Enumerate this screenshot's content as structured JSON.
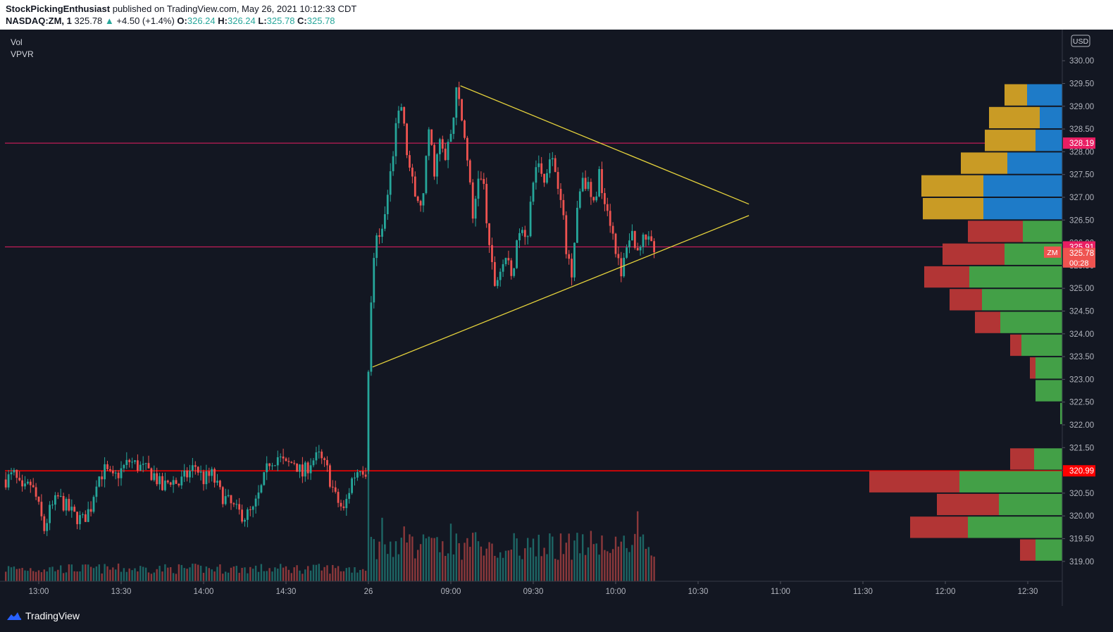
{
  "header": {
    "author": "StockPickingEnthusiast",
    "published": "published on TradingView.com, May 26, 2021 10:12:33 CDT",
    "symbol": "NASDAQ:ZM, 1",
    "last": "325.78",
    "change_arrow": "▲",
    "change": "+4.50 (+1.4%)",
    "o_label": "O:",
    "o": "326.24",
    "h_label": "H:",
    "h": "326.24",
    "l_label": "L:",
    "l": "325.78",
    "c_label": "C:",
    "c": "325.78"
  },
  "indicators": [
    "Vol",
    "VPVR"
  ],
  "footer": {
    "brand": "TradingView",
    "logo_icon": "tradingview-cloud-icon"
  },
  "colors": {
    "background": "#131722",
    "up": "#26a69a",
    "down": "#ef5350",
    "triangle": "#e6d33c",
    "hline_pink": "#e91e63",
    "hline_red": "#ff0000",
    "vp_up": "#43a047",
    "vp_down": "#b23535",
    "vp_va_up": "#1e7bc8",
    "vp_va_down": "#c99b25"
  },
  "chart_data": {
    "type": "candlestick",
    "currency": "USD",
    "price_axis": {
      "ylim": [
        318.6,
        330.5
      ],
      "ticks": [
        "330.00",
        "329.50",
        "329.00",
        "328.50",
        "328.00",
        "327.50",
        "327.00",
        "326.50",
        "326.00",
        "325.50",
        "325.00",
        "324.50",
        "324.00",
        "323.50",
        "323.00",
        "322.50",
        "322.00",
        "321.50",
        "321.00",
        "320.50",
        "320.00",
        "319.50",
        "319.00"
      ],
      "badges": [
        {
          "label": "USD",
          "kind": "currency"
        },
        {
          "value": "328.19",
          "color": "#e91e63"
        },
        {
          "value": "325.91",
          "color": "#e91e63"
        },
        {
          "symbol": "ZM",
          "value": "325.78",
          "countdown": "00:28",
          "color": "#ef5350"
        },
        {
          "value": "320.99",
          "color": "#ff0000"
        }
      ]
    },
    "time_axis": {
      "ticks": [
        {
          "label": "13:00",
          "t": 12
        },
        {
          "label": "13:30",
          "t": 42
        },
        {
          "label": "14:00",
          "t": 72
        },
        {
          "label": "14:30",
          "t": 102
        },
        {
          "label": "26",
          "t": 132
        },
        {
          "label": "09:00",
          "t": 162
        },
        {
          "label": "09:30",
          "t": 192
        },
        {
          "label": "10:00",
          "t": 222
        },
        {
          "label": "10:30",
          "t": 252
        },
        {
          "label": "11:00",
          "t": 282
        },
        {
          "label": "11:30",
          "t": 312
        },
        {
          "label": "12:00",
          "t": 342
        },
        {
          "label": "12:30",
          "t": 372
        }
      ],
      "t_range": [
        0,
        385
      ]
    },
    "horizontal_lines": [
      {
        "price": 328.19,
        "color": "#e91e63"
      },
      {
        "price": 325.91,
        "color": "#e91e63"
      },
      {
        "price": 320.99,
        "color": "#ff0000"
      }
    ],
    "trendlines": [
      {
        "from": [
          165.5,
          329.45
        ],
        "to": [
          270.5,
          326.85
        ]
      },
      {
        "from": [
          133.5,
          323.27
        ],
        "to": [
          270.5,
          326.6
        ]
      }
    ],
    "price_waypoints": [
      [
        0,
        320.8
      ],
      [
        3,
        320.9
      ],
      [
        6,
        320.5
      ],
      [
        9,
        320.7
      ],
      [
        11,
        320.4
      ],
      [
        14,
        319.7
      ],
      [
        16,
        320.1
      ],
      [
        19,
        320.4
      ],
      [
        22,
        320.2
      ],
      [
        25,
        320.0
      ],
      [
        28,
        319.9
      ],
      [
        31,
        320.2
      ],
      [
        33,
        320.8
      ],
      [
        36,
        321.0
      ],
      [
        39,
        320.8
      ],
      [
        42,
        321.0
      ],
      [
        45,
        321.2
      ],
      [
        48,
        321.1
      ],
      [
        51,
        321.0
      ],
      [
        54,
        320.9
      ],
      [
        57,
        320.6
      ],
      [
        60,
        320.8
      ],
      [
        63,
        320.7
      ],
      [
        66,
        320.9
      ],
      [
        69,
        321.1
      ],
      [
        72,
        320.8
      ],
      [
        75,
        320.9
      ],
      [
        78,
        320.5
      ],
      [
        81,
        320.3
      ],
      [
        84,
        320.1
      ],
      [
        87,
        320.0
      ],
      [
        90,
        320.1
      ],
      [
        93,
        320.6
      ],
      [
        96,
        321.2
      ],
      [
        99,
        321.3
      ],
      [
        102,
        321.1
      ],
      [
        105,
        321.2
      ],
      [
        108,
        320.9
      ],
      [
        111,
        321.2
      ],
      [
        114,
        321.3
      ],
      [
        117,
        321.0
      ],
      [
        120,
        320.4
      ],
      [
        123,
        320.1
      ],
      [
        126,
        320.8
      ],
      [
        129,
        321.1
      ],
      [
        131,
        321.0
      ],
      [
        132,
        323.3
      ],
      [
        133,
        324.6
      ],
      [
        134,
        325.8
      ],
      [
        136,
        326.2
      ],
      [
        138,
        326.6
      ],
      [
        140,
        327.5
      ],
      [
        142,
        328.5
      ],
      [
        144,
        329.0
      ],
      [
        146,
        328.0
      ],
      [
        148,
        327.3
      ],
      [
        150,
        326.8
      ],
      [
        152,
        327.0
      ],
      [
        154,
        328.5
      ],
      [
        156,
        327.6
      ],
      [
        158,
        328.2
      ],
      [
        160,
        327.8
      ],
      [
        162,
        328.4
      ],
      [
        164,
        329.3
      ],
      [
        165,
        329.1
      ],
      [
        166,
        328.7
      ],
      [
        168,
        327.9
      ],
      [
        170,
        326.5
      ],
      [
        172,
        327.5
      ],
      [
        174,
        327.2
      ],
      [
        176,
        325.8
      ],
      [
        178,
        325.1
      ],
      [
        180,
        325.4
      ],
      [
        182,
        325.7
      ],
      [
        184,
        325.2
      ],
      [
        186,
        325.9
      ],
      [
        188,
        326.4
      ],
      [
        190,
        326.1
      ],
      [
        192,
        327.4
      ],
      [
        194,
        327.8
      ],
      [
        196,
        327.3
      ],
      [
        198,
        328.0
      ],
      [
        200,
        327.6
      ],
      [
        202,
        327.1
      ],
      [
        204,
        325.8
      ],
      [
        206,
        325.4
      ],
      [
        208,
        326.8
      ],
      [
        210,
        327.5
      ],
      [
        212,
        327.2
      ],
      [
        214,
        326.8
      ],
      [
        216,
        327.5
      ],
      [
        218,
        327.0
      ],
      [
        220,
        326.5
      ],
      [
        222,
        325.9
      ],
      [
        224,
        325.2
      ],
      [
        226,
        326.0
      ],
      [
        228,
        326.2
      ],
      [
        230,
        325.8
      ],
      [
        232,
        326.3
      ],
      [
        234,
        326.0
      ],
      [
        236,
        325.8
      ]
    ],
    "candle_count": 237,
    "volume": {
      "spike_t": [
        132,
        137,
        145,
        162,
        185,
        205,
        230
      ],
      "baseline": 0.25
    },
    "volume_profile": [
      {
        "price": 329.25,
        "up": 50,
        "down": 32,
        "value_area": true
      },
      {
        "price": 328.75,
        "up": 32,
        "down": 72,
        "value_area": true
      },
      {
        "price": 328.25,
        "up": 38,
        "down": 72,
        "value_area": true
      },
      {
        "price": 327.75,
        "up": 78,
        "down": 66,
        "value_area": true
      },
      {
        "price": 327.25,
        "up": 112,
        "down": 88,
        "value_area": true
      },
      {
        "price": 326.75,
        "up": 112,
        "down": 86,
        "value_area": true
      },
      {
        "price": 326.25,
        "up": 56,
        "down": 78
      },
      {
        "price": 325.75,
        "up": 82,
        "down": 88
      },
      {
        "price": 325.25,
        "up": 132,
        "down": 64
      },
      {
        "price": 324.75,
        "up": 114,
        "down": 46
      },
      {
        "price": 324.25,
        "up": 88,
        "down": 36
      },
      {
        "price": 323.75,
        "up": 58,
        "down": 16
      },
      {
        "price": 323.25,
        "up": 38,
        "down": 8
      },
      {
        "price": 322.75,
        "up": 38,
        "down": 0
      },
      {
        "price": 322.25,
        "up": 3,
        "down": 0
      },
      {
        "price": 321.25,
        "up": 40,
        "down": 34
      },
      {
        "price": 320.75,
        "up": 146,
        "down": 128
      },
      {
        "price": 320.25,
        "up": 90,
        "down": 88
      },
      {
        "price": 319.75,
        "up": 134,
        "down": 82
      },
      {
        "price": 319.25,
        "up": 38,
        "down": 22
      }
    ]
  }
}
